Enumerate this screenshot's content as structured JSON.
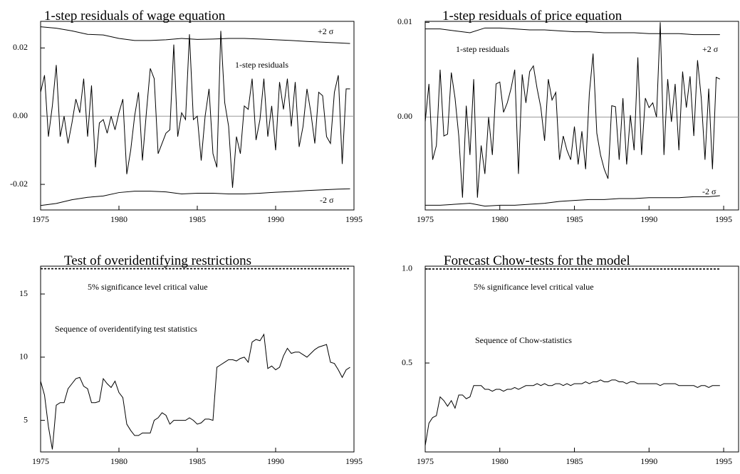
{
  "chart_data": [
    {
      "type": "line",
      "title": "1-step residuals of wage equation",
      "x": [
        1975,
        1975.25,
        1975.5,
        1975.75,
        1976,
        1976.25,
        1976.5,
        1976.75,
        1977,
        1977.25,
        1977.5,
        1977.75,
        1978,
        1978.25,
        1978.5,
        1978.75,
        1979,
        1979.25,
        1979.5,
        1979.75,
        1980,
        1980.25,
        1980.5,
        1980.75,
        1981,
        1981.25,
        1981.5,
        1981.75,
        1982,
        1982.25,
        1982.5,
        1982.75,
        1983,
        1983.25,
        1983.5,
        1983.75,
        1984,
        1984.25,
        1984.5,
        1984.75,
        1985,
        1985.25,
        1985.5,
        1985.75,
        1986,
        1986.25,
        1986.5,
        1986.75,
        1987,
        1987.25,
        1987.5,
        1987.75,
        1988,
        1988.25,
        1988.5,
        1988.75,
        1989,
        1989.25,
        1989.5,
        1989.75,
        1990,
        1990.25,
        1990.5,
        1990.75,
        1991,
        1991.25,
        1991.5,
        1991.75,
        1992,
        1992.25,
        1992.5,
        1992.75,
        1993,
        1993.25,
        1993.5,
        1993.75,
        1994,
        1994.25,
        1994.5,
        1994.75
      ],
      "series": [
        {
          "name": "1-step residuals",
          "color": "#000000",
          "values": [
            0.007,
            0.012,
            -0.006,
            0.003,
            0.015,
            -0.006,
            0.0,
            -0.008,
            -0.002,
            0.005,
            0.001,
            0.011,
            -0.006,
            0.009,
            -0.015,
            -0.002,
            -0.001,
            -0.005,
            0.0,
            -0.004,
            0.001,
            0.005,
            -0.017,
            -0.01,
            0.0,
            0.007,
            -0.013,
            0.001,
            0.014,
            0.011,
            -0.011,
            -0.008,
            -0.005,
            -0.004,
            0.021,
            -0.006,
            0.001,
            -0.001,
            0.024,
            -0.001,
            0.0,
            -0.013,
            0.0,
            0.008,
            -0.011,
            -0.015,
            0.025,
            0.004,
            -0.003,
            -0.021,
            -0.006,
            -0.011,
            0.003,
            0.002,
            0.011,
            -0.007,
            -0.001,
            0.011,
            -0.006,
            0.003,
            -0.01,
            0.01,
            0.002,
            0.011,
            -0.003,
            0.01,
            -0.009,
            -0.003,
            0.008,
            0.001,
            -0.008,
            0.007,
            0.006,
            -0.006,
            -0.008,
            0.007,
            0.012,
            -0.014,
            0.008,
            0.008
          ]
        },
        {
          "name": "+2 σ",
          "color": "#000000",
          "x": [
            1975,
            1976,
            1977,
            1978,
            1979,
            1980,
            1981,
            1982,
            1983,
            1984,
            1985,
            1986,
            1987,
            1988,
            1989,
            1990,
            1991,
            1992,
            1993,
            1994,
            1994.75
          ],
          "values": [
            0.0262,
            0.0258,
            0.025,
            0.024,
            0.0238,
            0.0228,
            0.0222,
            0.0222,
            0.0224,
            0.0228,
            0.0225,
            0.0226,
            0.0228,
            0.0228,
            0.0226,
            0.0224,
            0.0222,
            0.0219,
            0.0217,
            0.0215,
            0.0213
          ]
        },
        {
          "name": "-2 σ",
          "color": "#000000",
          "x": [
            1975,
            1976,
            1977,
            1978,
            1979,
            1980,
            1981,
            1982,
            1983,
            1984,
            1985,
            1986,
            1987,
            1988,
            1989,
            1990,
            1991,
            1992,
            1993,
            1994,
            1994.75
          ],
          "values": [
            -0.0262,
            -0.0256,
            -0.0245,
            -0.0238,
            -0.0234,
            -0.0224,
            -0.022,
            -0.022,
            -0.0222,
            -0.0228,
            -0.0226,
            -0.0226,
            -0.0228,
            -0.0228,
            -0.0226,
            -0.0223,
            -0.0221,
            -0.0218,
            -0.0216,
            -0.0214,
            -0.0213
          ]
        }
      ],
      "xlim": [
        1975,
        1995
      ],
      "xticks": [
        1975,
        1980,
        1985,
        1990,
        1995
      ],
      "ylim": [
        -0.0275,
        0.0278
      ],
      "yticks": [
        -0.02,
        {
          "value": 0,
          "label": "0.00"
        },
        0.02
      ],
      "zero_line": true
    },
    {
      "type": "line",
      "title": "1-step residuals of price equation",
      "x": [
        1975,
        1975.25,
        1975.5,
        1975.75,
        1976,
        1976.25,
        1976.5,
        1976.75,
        1977,
        1977.25,
        1977.5,
        1977.75,
        1978,
        1978.25,
        1978.5,
        1978.75,
        1979,
        1979.25,
        1979.5,
        1979.75,
        1980,
        1980.25,
        1980.5,
        1980.75,
        1981,
        1981.25,
        1981.5,
        1981.75,
        1982,
        1982.25,
        1982.5,
        1982.75,
        1983,
        1983.25,
        1983.5,
        1983.75,
        1984,
        1984.25,
        1984.5,
        1984.75,
        1985,
        1985.25,
        1985.5,
        1985.75,
        1986,
        1986.25,
        1986.5,
        1986.75,
        1987,
        1987.25,
        1987.5,
        1987.75,
        1988,
        1988.25,
        1988.5,
        1988.75,
        1989,
        1989.25,
        1989.5,
        1989.75,
        1990,
        1990.25,
        1990.5,
        1990.75,
        1991,
        1991.25,
        1991.5,
        1991.75,
        1992,
        1992.25,
        1992.5,
        1992.75,
        1993,
        1993.25,
        1993.5,
        1993.75,
        1994,
        1994.25,
        1994.5,
        1994.75
      ],
      "series": [
        {
          "name": "1-step residuals",
          "color": "#000000",
          "values": [
            -0.0005,
            0.0035,
            -0.0045,
            -0.003,
            0.005,
            -0.002,
            -0.0018,
            0.0047,
            0.002,
            -0.002,
            -0.0085,
            0.0012,
            -0.004,
            0.004,
            -0.0085,
            -0.003,
            -0.006,
            0.0,
            -0.004,
            0.0035,
            0.0037,
            0.0005,
            0.0015,
            0.003,
            0.005,
            -0.006,
            0.0045,
            0.0015,
            0.0048,
            0.0054,
            0.003,
            0.001,
            -0.0025,
            0.004,
            0.0018,
            0.0026,
            -0.0045,
            -0.002,
            -0.0035,
            -0.0045,
            -0.001,
            -0.005,
            -0.0015,
            -0.0055,
            0.0025,
            0.0067,
            -0.0017,
            -0.004,
            -0.0055,
            -0.0065,
            0.0012,
            0.0011,
            -0.0045,
            0.002,
            -0.005,
            0.0002,
            -0.0035,
            0.0063,
            -0.004,
            0.002,
            0.001,
            0.0015,
            0.0,
            0.01,
            -0.004,
            0.004,
            -0.0005,
            0.0035,
            -0.0035,
            0.0048,
            0.001,
            0.0043,
            -0.002,
            0.006,
            0.002,
            -0.0045,
            0.003,
            -0.0055,
            0.0042,
            0.004
          ]
        },
        {
          "name": "+2 σ",
          "color": "#000000",
          "x": [
            1975,
            1976,
            1977,
            1978,
            1979,
            1980,
            1981,
            1982,
            1983,
            1984,
            1985,
            1986,
            1987,
            1988,
            1989,
            1990,
            1991,
            1992,
            1993,
            1994,
            1994.75
          ],
          "values": [
            0.0093,
            0.0093,
            0.0091,
            0.0089,
            0.0094,
            0.0094,
            0.0093,
            0.0092,
            0.0092,
            0.0091,
            0.009,
            0.009,
            0.0089,
            0.0089,
            0.0089,
            0.0088,
            0.0088,
            0.0088,
            0.0087,
            0.0087,
            0.0087
          ]
        },
        {
          "name": "-2 σ",
          "color": "#000000",
          "x": [
            1975,
            1976,
            1977,
            1978,
            1979,
            1980,
            1981,
            1982,
            1983,
            1984,
            1985,
            1986,
            1987,
            1988,
            1989,
            1990,
            1991,
            1992,
            1993,
            1994,
            1994.75
          ],
          "values": [
            -0.0093,
            -0.0093,
            -0.0092,
            -0.0091,
            -0.0094,
            -0.0093,
            -0.0093,
            -0.0092,
            -0.0091,
            -0.0089,
            -0.0088,
            -0.0087,
            -0.0087,
            -0.0086,
            -0.0086,
            -0.0085,
            -0.0085,
            -0.0085,
            -0.0084,
            -0.0084,
            -0.0083
          ]
        }
      ],
      "xlim": [
        1975,
        1996
      ],
      "xticks": [
        1975,
        1980,
        1985,
        1990,
        1995
      ],
      "ylim": [
        -0.0098,
        0.0101
      ],
      "yticks": [
        {
          "value": 0,
          "label": "0.00"
        },
        0.01
      ],
      "zero_line": true
    },
    {
      "type": "line",
      "title": "Test of overidentifying restrictions",
      "x": [
        1975,
        1975.25,
        1975.5,
        1975.75,
        1976,
        1976.25,
        1976.5,
        1976.75,
        1977,
        1977.25,
        1977.5,
        1977.75,
        1978,
        1978.25,
        1978.5,
        1978.75,
        1979,
        1979.25,
        1979.5,
        1979.75,
        1980,
        1980.25,
        1980.5,
        1980.75,
        1981,
        1981.25,
        1981.5,
        1981.75,
        1982,
        1982.25,
        1982.5,
        1982.75,
        1983,
        1983.25,
        1983.5,
        1983.75,
        1984,
        1984.25,
        1984.5,
        1984.75,
        1985,
        1985.25,
        1985.5,
        1985.75,
        1986,
        1986.25,
        1986.5,
        1986.75,
        1987,
        1987.25,
        1987.5,
        1987.75,
        1988,
        1988.25,
        1988.5,
        1988.75,
        1989,
        1989.25,
        1989.5,
        1989.75,
        1990,
        1990.25,
        1990.5,
        1990.75,
        1991,
        1991.25,
        1991.5,
        1991.75,
        1992,
        1992.25,
        1992.5,
        1992.75,
        1993,
        1993.25,
        1993.5,
        1993.75,
        1994,
        1994.25,
        1994.5,
        1994.75
      ],
      "series": [
        {
          "name": "Sequence of overidentifying test statistics",
          "color": "#000000",
          "values": [
            8.1,
            7.0,
            4.5,
            2.7,
            6.2,
            6.4,
            6.4,
            7.5,
            7.9,
            8.3,
            8.4,
            7.7,
            7.5,
            6.4,
            6.4,
            6.5,
            8.3,
            7.9,
            7.6,
            8.1,
            7.2,
            6.8,
            4.7,
            4.2,
            3.8,
            3.8,
            4.0,
            4.0,
            4.0,
            5.0,
            5.2,
            5.6,
            5.4,
            4.7,
            5.0,
            5.0,
            5.0,
            5.0,
            5.2,
            5.0,
            4.7,
            4.8,
            5.1,
            5.1,
            5.0,
            9.2,
            9.4,
            9.6,
            9.8,
            9.8,
            9.7,
            9.9,
            10.0,
            9.6,
            11.2,
            11.4,
            11.3,
            11.8,
            9.1,
            9.3,
            9.0,
            9.2,
            10.1,
            10.7,
            10.3,
            10.4,
            10.4,
            10.2,
            10.0,
            10.3,
            10.6,
            10.8,
            10.9,
            11.0,
            9.6,
            9.5,
            9.0,
            8.4,
            9.0,
            9.2
          ]
        },
        {
          "name": "5% significance level critical value",
          "color": "#000000",
          "dashed": true,
          "x": [
            1975,
            1994.75
          ],
          "values": [
            17.0,
            17.0
          ]
        }
      ],
      "xlim": [
        1975,
        1995
      ],
      "xticks": [
        1975,
        1980,
        1985,
        1990,
        1995
      ],
      "ylim": [
        2.5,
        17.2
      ],
      "yticks": [
        5,
        10,
        15
      ]
    },
    {
      "type": "line",
      "title": "Forecast Chow-tests for the model",
      "x": [
        1975,
        1975.25,
        1975.5,
        1975.75,
        1976,
        1976.25,
        1976.5,
        1976.75,
        1977,
        1977.25,
        1977.5,
        1977.75,
        1978,
        1978.25,
        1978.5,
        1978.75,
        1979,
        1979.25,
        1979.5,
        1979.75,
        1980,
        1980.25,
        1980.5,
        1980.75,
        1981,
        1981.25,
        1981.5,
        1981.75,
        1982,
        1982.25,
        1982.5,
        1982.75,
        1983,
        1983.25,
        1983.5,
        1983.75,
        1984,
        1984.25,
        1984.5,
        1984.75,
        1985,
        1985.25,
        1985.5,
        1985.75,
        1986,
        1986.25,
        1986.5,
        1986.75,
        1987,
        1987.25,
        1987.5,
        1987.75,
        1988,
        1988.25,
        1988.5,
        1988.75,
        1989,
        1989.25,
        1989.5,
        1989.75,
        1990,
        1990.25,
        1990.5,
        1990.75,
        1991,
        1991.25,
        1991.5,
        1991.75,
        1992,
        1992.25,
        1992.5,
        1992.75,
        1993,
        1993.25,
        1993.5,
        1993.75,
        1994,
        1994.25,
        1994.5,
        1994.75
      ],
      "series": [
        {
          "name": "Sequence of Chow-statistics",
          "color": "#000000",
          "values": [
            0.06,
            0.18,
            0.21,
            0.22,
            0.32,
            0.3,
            0.27,
            0.3,
            0.26,
            0.33,
            0.33,
            0.31,
            0.32,
            0.38,
            0.38,
            0.38,
            0.36,
            0.36,
            0.35,
            0.36,
            0.36,
            0.35,
            0.36,
            0.36,
            0.37,
            0.36,
            0.37,
            0.38,
            0.38,
            0.38,
            0.39,
            0.38,
            0.39,
            0.38,
            0.38,
            0.39,
            0.39,
            0.38,
            0.39,
            0.38,
            0.39,
            0.39,
            0.39,
            0.4,
            0.39,
            0.4,
            0.4,
            0.41,
            0.4,
            0.4,
            0.41,
            0.41,
            0.4,
            0.4,
            0.39,
            0.4,
            0.4,
            0.39,
            0.39,
            0.39,
            0.39,
            0.39,
            0.39,
            0.38,
            0.39,
            0.39,
            0.39,
            0.39,
            0.38,
            0.38,
            0.38,
            0.38,
            0.38,
            0.37,
            0.38,
            0.38,
            0.37,
            0.38,
            0.38,
            0.38
          ]
        },
        {
          "name": "5% significance level critical value",
          "color": "#000000",
          "dashed": true,
          "x": [
            1975,
            1994.75
          ],
          "values": [
            1.0,
            1.0
          ]
        }
      ],
      "xlim": [
        1975,
        1996
      ],
      "xticks": [
        1975,
        1980,
        1985,
        1990,
        1995
      ],
      "ylim": [
        0.027,
        1.015
      ],
      "yticks": [
        0.5,
        {
          "value": 1,
          "label": "1.0"
        }
      ]
    }
  ]
}
